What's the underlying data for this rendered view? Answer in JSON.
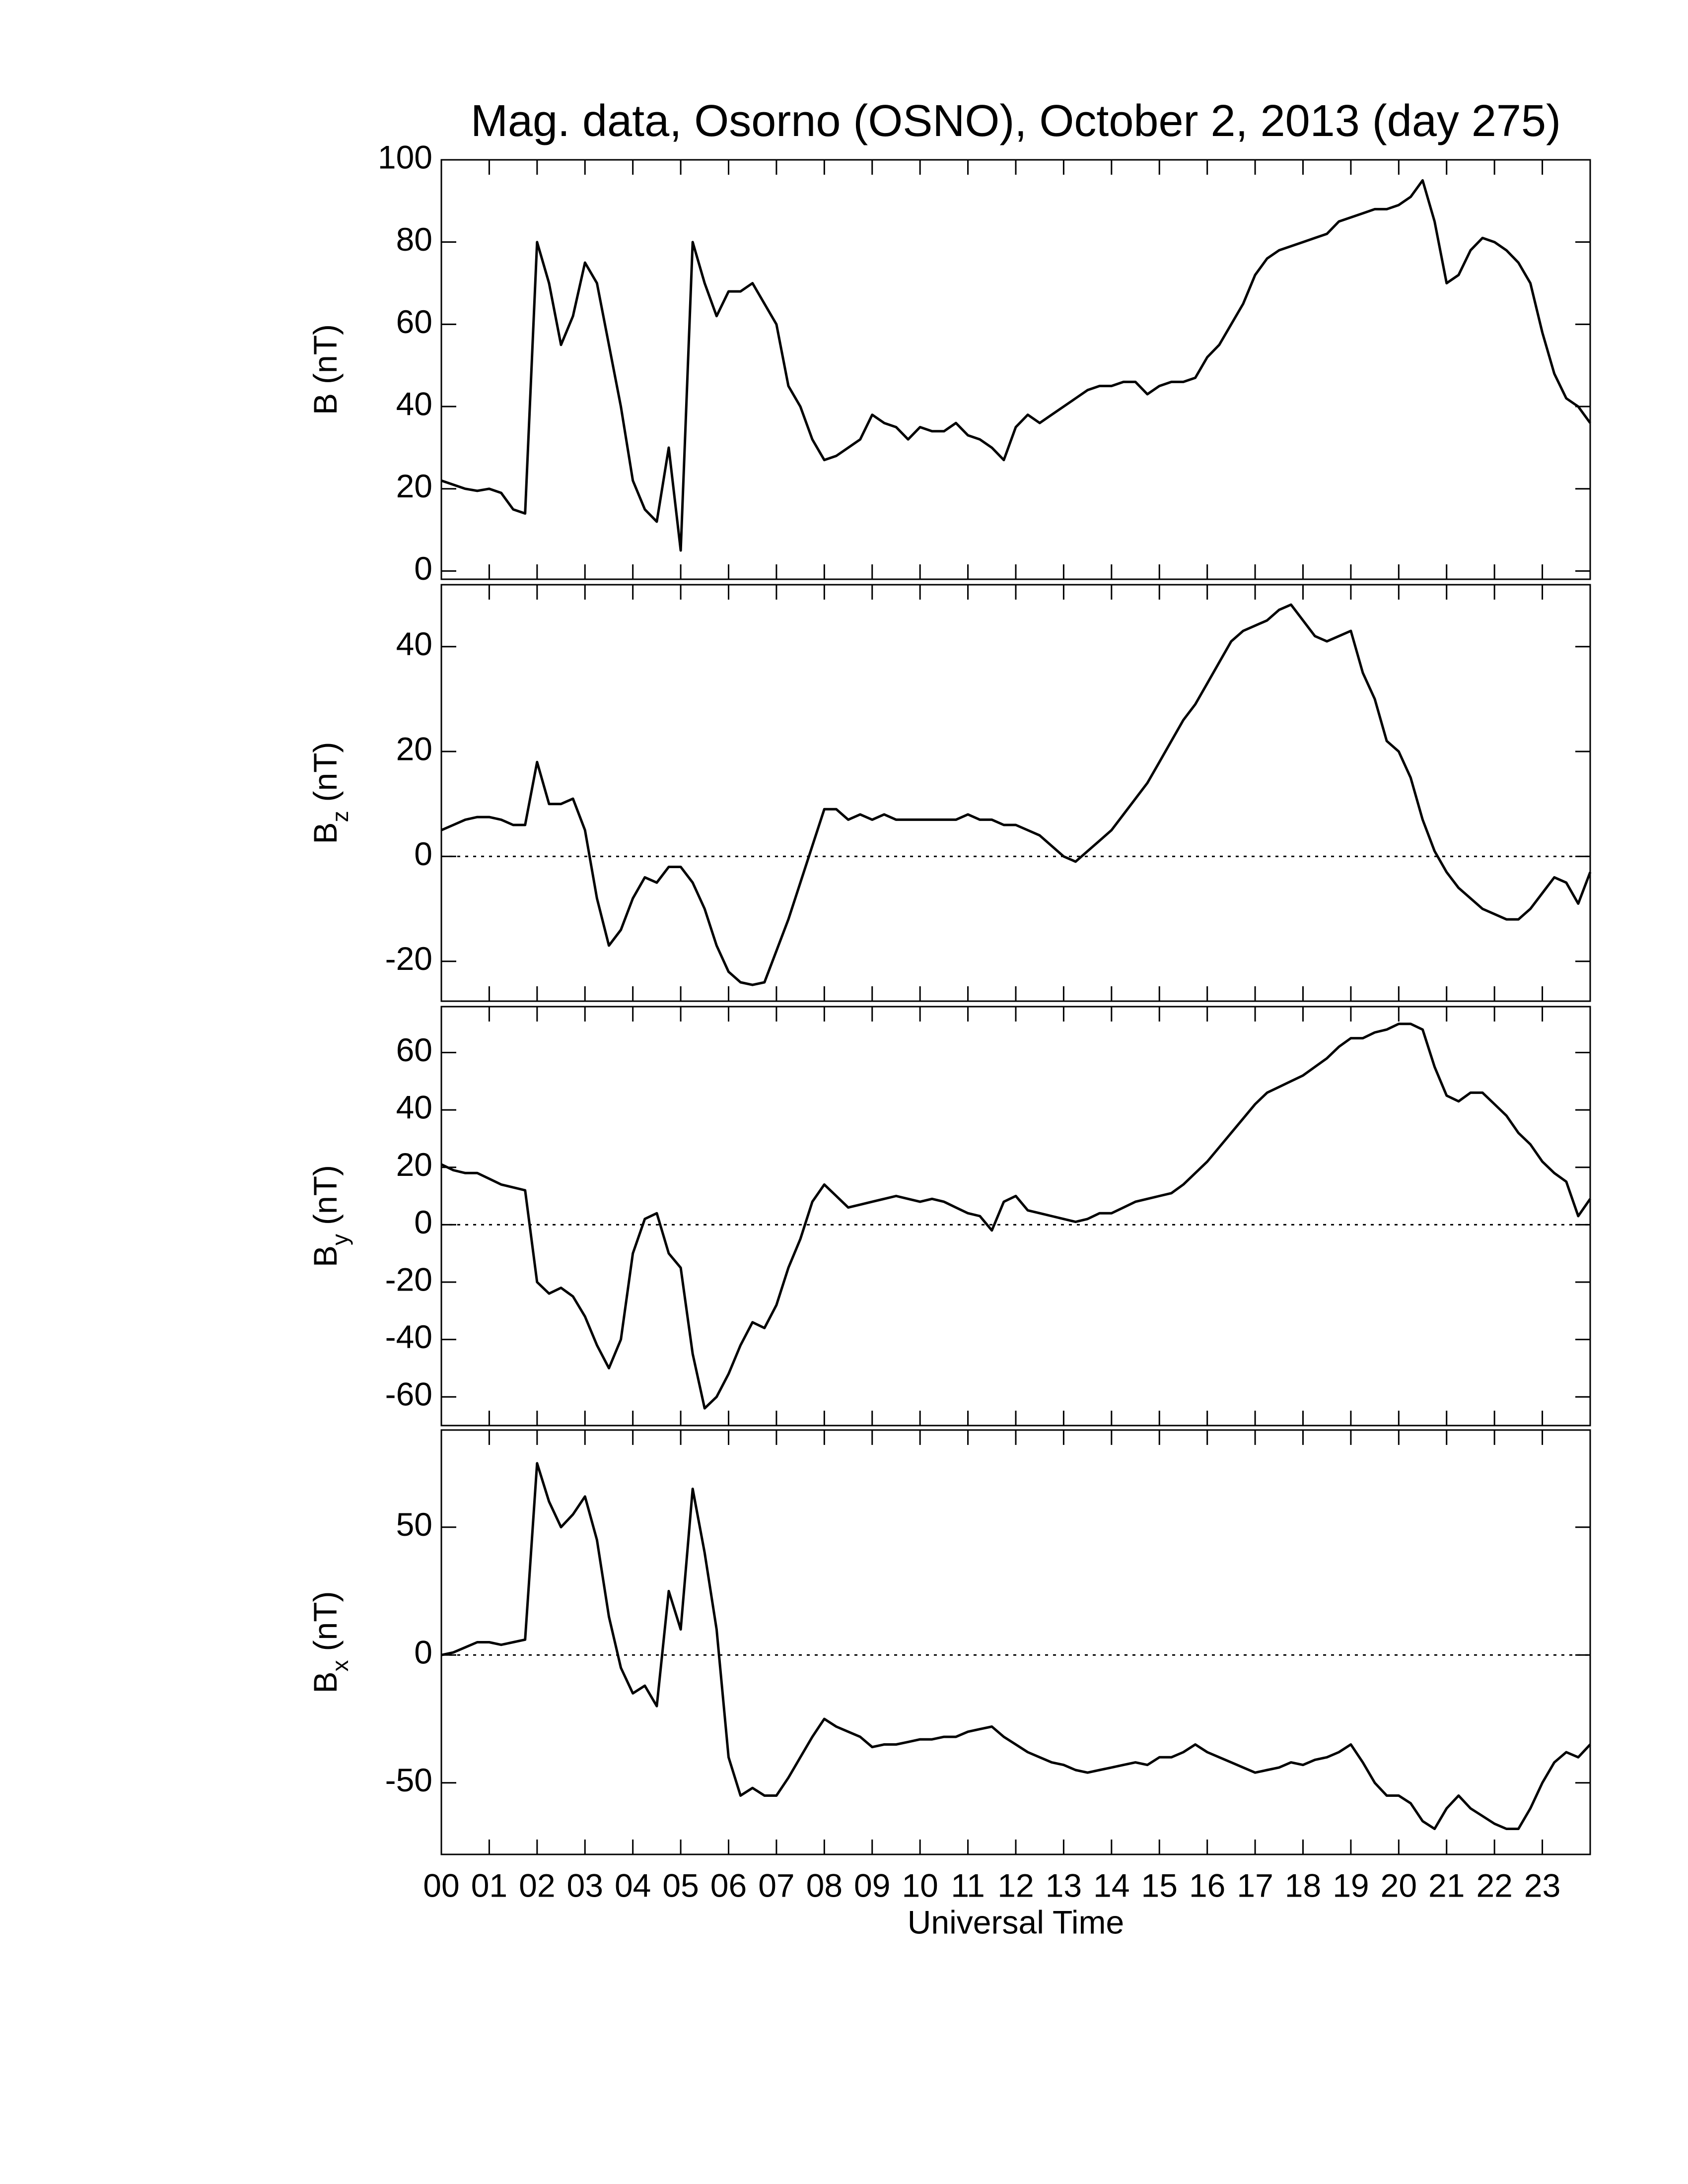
{
  "chart_data": [
    {
      "type": "line",
      "title": "Mag. data, Osorno (OSNO), October 2, 2013 (day 275)",
      "ylabel": "B",
      "ylabel_unit": "(nT)",
      "color": "#000000",
      "xlim": [
        0,
        24
      ],
      "ylim": [
        -2,
        100
      ],
      "yticks": [
        0,
        20,
        40,
        60,
        80,
        100
      ],
      "x": [
        0,
        0.25,
        0.5,
        0.75,
        1,
        1.25,
        1.5,
        1.75,
        2,
        2.25,
        2.5,
        2.75,
        3,
        3.25,
        3.5,
        3.75,
        4,
        4.25,
        4.5,
        4.75,
        5,
        5.25,
        5.5,
        5.75,
        6,
        6.25,
        6.5,
        6.75,
        7,
        7.25,
        7.5,
        7.75,
        8,
        8.25,
        8.5,
        8.75,
        9,
        9.25,
        9.5,
        9.75,
        10,
        10.25,
        10.5,
        10.75,
        11,
        11.25,
        11.5,
        11.75,
        12,
        12.25,
        12.5,
        12.75,
        13,
        13.25,
        13.5,
        13.75,
        14,
        14.25,
        14.5,
        14.75,
        15,
        15.25,
        15.5,
        15.75,
        16,
        16.25,
        16.5,
        16.75,
        17,
        17.25,
        17.5,
        17.75,
        18,
        18.25,
        18.5,
        18.75,
        19,
        19.25,
        19.5,
        19.75,
        20,
        20.25,
        20.5,
        20.75,
        21,
        21.25,
        21.5,
        21.75,
        22,
        22.25,
        22.5,
        22.75,
        23,
        23.25,
        23.5,
        23.75,
        24
      ],
      "values": [
        22,
        21,
        20,
        19.5,
        20,
        19,
        15,
        14,
        80,
        70,
        55,
        62,
        75,
        70,
        55,
        40,
        22,
        15,
        12,
        30,
        5,
        80,
        70,
        62,
        68,
        68,
        70,
        65,
        60,
        45,
        40,
        32,
        27,
        28,
        30,
        32,
        38,
        36,
        35,
        32,
        35,
        34,
        34,
        36,
        33,
        32,
        30,
        27,
        35,
        38,
        36,
        38,
        40,
        42,
        44,
        45,
        45,
        46,
        46,
        43,
        45,
        46,
        46,
        47,
        52,
        55,
        60,
        65,
        72,
        76,
        78,
        79,
        80,
        81,
        82,
        85,
        86,
        87,
        88,
        88,
        89,
        91,
        95,
        85,
        70,
        72,
        78,
        81,
        80,
        78,
        75,
        70,
        58,
        48,
        42,
        40,
        36
      ]
    },
    {
      "type": "line",
      "ylabel": "B",
      "ylabel_sub": "z",
      "ylabel_unit": "(nT)",
      "color": "#000000",
      "zero_line": true,
      "xlim": [
        0,
        24
      ],
      "ylim": [
        -27.6,
        51.8
      ],
      "yticks": [
        -20,
        0,
        20,
        40
      ],
      "x": [
        0,
        0.25,
        0.5,
        0.75,
        1,
        1.25,
        1.5,
        1.75,
        2,
        2.25,
        2.5,
        2.75,
        3,
        3.25,
        3.5,
        3.75,
        4,
        4.25,
        4.5,
        4.75,
        5,
        5.25,
        5.5,
        5.75,
        6,
        6.25,
        6.5,
        6.75,
        7,
        7.25,
        7.5,
        7.75,
        8,
        8.25,
        8.5,
        8.75,
        9,
        9.25,
        9.5,
        9.75,
        10,
        10.25,
        10.5,
        10.75,
        11,
        11.25,
        11.5,
        11.75,
        12,
        12.25,
        12.5,
        12.75,
        13,
        13.25,
        13.5,
        13.75,
        14,
        14.25,
        14.5,
        14.75,
        15,
        15.25,
        15.5,
        15.75,
        16,
        16.25,
        16.5,
        16.75,
        17,
        17.25,
        17.5,
        17.75,
        18,
        18.25,
        18.5,
        18.75,
        19,
        19.25,
        19.5,
        19.75,
        20,
        20.25,
        20.5,
        20.75,
        21,
        21.25,
        21.5,
        21.75,
        22,
        22.25,
        22.5,
        22.75,
        23,
        23.25,
        23.5,
        23.75,
        24
      ],
      "values": [
        5,
        6,
        7,
        7.5,
        7.5,
        7,
        6,
        6,
        18,
        10,
        10,
        11,
        5,
        -8,
        -17,
        -14,
        -8,
        -4,
        -5,
        -2,
        -2,
        -5,
        -10,
        -17,
        -22,
        -24,
        -24.5,
        -24,
        -18,
        -12,
        -5,
        2,
        9,
        9,
        7,
        8,
        7,
        8,
        7,
        7,
        7,
        7,
        7,
        7,
        8,
        7,
        7,
        6,
        6,
        5,
        4,
        2,
        0,
        -1,
        1,
        3,
        5,
        8,
        11,
        14,
        18,
        22,
        26,
        29,
        33,
        37,
        41,
        43,
        44,
        45,
        47,
        48,
        45,
        42,
        41,
        42,
        43,
        35,
        30,
        22,
        20,
        15,
        7,
        1,
        -3,
        -6,
        -8,
        -10,
        -11,
        -12,
        -12,
        -10,
        -7,
        -4,
        -5,
        -9,
        -3
      ]
    },
    {
      "type": "line",
      "ylabel": "B",
      "ylabel_sub": "y",
      "ylabel_unit": "(nT)",
      "color": "#000000",
      "zero_line": true,
      "xlim": [
        0,
        24
      ],
      "ylim": [
        -70,
        76
      ],
      "yticks": [
        -60,
        -40,
        -20,
        0,
        20,
        40,
        60
      ],
      "x": [
        0,
        0.25,
        0.5,
        0.75,
        1,
        1.25,
        1.5,
        1.75,
        2,
        2.25,
        2.5,
        2.75,
        3,
        3.25,
        3.5,
        3.75,
        4,
        4.25,
        4.5,
        4.75,
        5,
        5.25,
        5.5,
        5.75,
        6,
        6.25,
        6.5,
        6.75,
        7,
        7.25,
        7.5,
        7.75,
        8,
        8.25,
        8.5,
        8.75,
        9,
        9.25,
        9.5,
        9.75,
        10,
        10.25,
        10.5,
        10.75,
        11,
        11.25,
        11.5,
        11.75,
        12,
        12.25,
        12.5,
        12.75,
        13,
        13.25,
        13.5,
        13.75,
        14,
        14.25,
        14.5,
        14.75,
        15,
        15.25,
        15.5,
        15.75,
        16,
        16.25,
        16.5,
        16.75,
        17,
        17.25,
        17.5,
        17.75,
        18,
        18.25,
        18.5,
        18.75,
        19,
        19.25,
        19.5,
        19.75,
        20,
        20.25,
        20.5,
        20.75,
        21,
        21.25,
        21.5,
        21.75,
        22,
        22.25,
        22.5,
        22.75,
        23,
        23.25,
        23.5,
        23.75,
        24
      ],
      "values": [
        21,
        19,
        18,
        18,
        16,
        14,
        13,
        12,
        -20,
        -24,
        -22,
        -25,
        -32,
        -42,
        -50,
        -40,
        -10,
        2,
        4,
        -10,
        -15,
        -45,
        -64,
        -60,
        -52,
        -42,
        -34,
        -36,
        -28,
        -15,
        -5,
        8,
        14,
        10,
        6,
        7,
        8,
        9,
        10,
        9,
        8,
        9,
        8,
        6,
        4,
        3,
        -2,
        8,
        10,
        5,
        4,
        3,
        2,
        1,
        2,
        4,
        4,
        6,
        8,
        9,
        10,
        11,
        14,
        18,
        22,
        27,
        32,
        37,
        42,
        46,
        48,
        50,
        52,
        55,
        58,
        62,
        65,
        65,
        67,
        68,
        70,
        70,
        68,
        55,
        45,
        43,
        46,
        46,
        42,
        38,
        32,
        28,
        22,
        18,
        15,
        3,
        9
      ]
    },
    {
      "type": "line",
      "ylabel": "B",
      "ylabel_sub": "x",
      "ylabel_unit": "(nT)",
      "xlabel": "Universal Time",
      "color": "#000000",
      "zero_line": true,
      "xlim": [
        0,
        24
      ],
      "ylim": [
        -78,
        88
      ],
      "yticks": [
        -50,
        0,
        50
      ],
      "xticks": [
        {
          "value": 0,
          "label": "00"
        },
        {
          "value": 1,
          "label": "01"
        },
        {
          "value": 2,
          "label": "02"
        },
        {
          "value": 3,
          "label": "03"
        },
        {
          "value": 4,
          "label": "04"
        },
        {
          "value": 5,
          "label": "05"
        },
        {
          "value": 6,
          "label": "06"
        },
        {
          "value": 7,
          "label": "07"
        },
        {
          "value": 8,
          "label": "08"
        },
        {
          "value": 9,
          "label": "09"
        },
        10,
        11,
        12,
        13,
        14,
        15,
        16,
        17,
        18,
        19,
        20,
        21,
        22,
        23
      ],
      "x": [
        0,
        0.25,
        0.5,
        0.75,
        1,
        1.25,
        1.5,
        1.75,
        2,
        2.25,
        2.5,
        2.75,
        3,
        3.25,
        3.5,
        3.75,
        4,
        4.25,
        4.5,
        4.75,
        5,
        5.25,
        5.5,
        5.75,
        6,
        6.25,
        6.5,
        6.75,
        7,
        7.25,
        7.5,
        7.75,
        8,
        8.25,
        8.5,
        8.75,
        9,
        9.25,
        9.5,
        9.75,
        10,
        10.25,
        10.5,
        10.75,
        11,
        11.25,
        11.5,
        11.75,
        12,
        12.25,
        12.5,
        12.75,
        13,
        13.25,
        13.5,
        13.75,
        14,
        14.25,
        14.5,
        14.75,
        15,
        15.25,
        15.5,
        15.75,
        16,
        16.25,
        16.5,
        16.75,
        17,
        17.25,
        17.5,
        17.75,
        18,
        18.25,
        18.5,
        18.75,
        19,
        19.25,
        19.5,
        19.75,
        20,
        20.25,
        20.5,
        20.75,
        21,
        21.25,
        21.5,
        21.75,
        22,
        22.25,
        22.5,
        22.75,
        23,
        23.25,
        23.5,
        23.75,
        24
      ],
      "values": [
        0,
        1,
        3,
        5,
        5,
        4,
        5,
        6,
        75,
        60,
        50,
        55,
        62,
        45,
        15,
        -5,
        -15,
        -12,
        -20,
        25,
        10,
        65,
        40,
        10,
        -40,
        -55,
        -52,
        -55,
        -55,
        -48,
        -40,
        -32,
        -25,
        -28,
        -30,
        -32,
        -36,
        -35,
        -35,
        -34,
        -33,
        -33,
        -32,
        -32,
        -30,
        -29,
        -28,
        -32,
        -35,
        -38,
        -40,
        -42,
        -43,
        -45,
        -46,
        -45,
        -44,
        -43,
        -42,
        -43,
        -40,
        -40,
        -38,
        -35,
        -38,
        -40,
        -42,
        -44,
        -46,
        -45,
        -44,
        -42,
        -43,
        -41,
        -40,
        -38,
        -35,
        -42,
        -50,
        -55,
        -55,
        -58,
        -65,
        -68,
        -60,
        -55,
        -60,
        -63,
        -66,
        -68,
        -68,
        -60,
        -50,
        -42,
        -38,
        -40,
        -35
      ]
    }
  ]
}
